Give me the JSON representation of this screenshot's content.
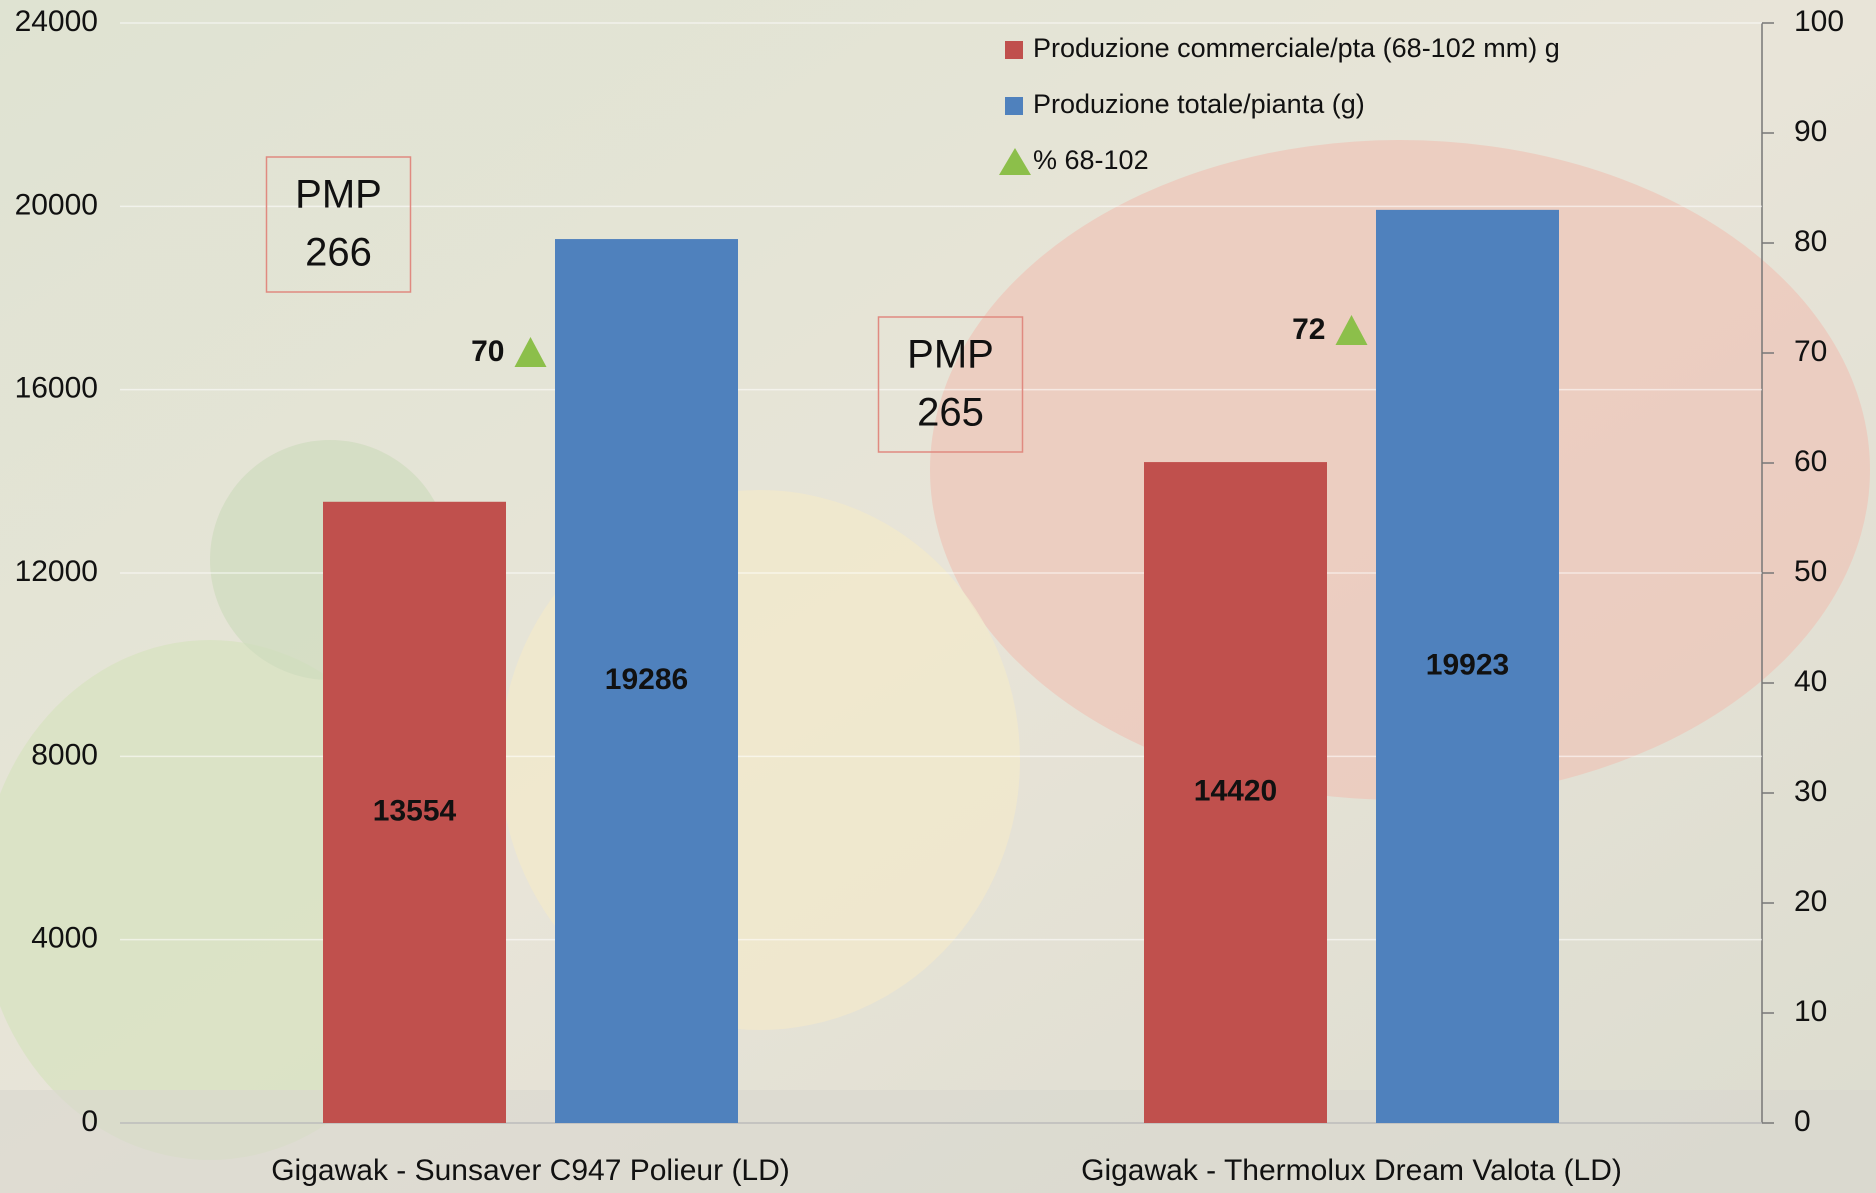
{
  "chart_data": {
    "type": "bar",
    "categories": [
      "Gigawak - Sunsaver C947 Polieur (LD)",
      "Gigawak - Thermolux Dream Valota (LD)"
    ],
    "series": [
      {
        "name": "Produzione commerciale/pta (68-102 mm) g",
        "color": "#c0504d",
        "values": [
          13554,
          14420
        ]
      },
      {
        "name": "Produzione totale/pianta (g)",
        "color": "#4f81bd",
        "values": [
          19286,
          19923
        ]
      },
      {
        "name": "% 68-102",
        "type": "scatter",
        "axis": "y2",
        "color": "#8cbf4a",
        "values": [
          70,
          72
        ]
      }
    ],
    "ylim": [
      0,
      24000
    ],
    "yticks": [
      0,
      4000,
      8000,
      12000,
      16000,
      20000,
      24000
    ],
    "y2lim": [
      0,
      100
    ],
    "y2ticks": [
      0,
      10,
      20,
      30,
      40,
      50,
      60,
      70,
      80,
      90,
      100
    ],
    "annotations": [
      {
        "text": "PMP",
        "value": 266
      },
      {
        "text": "PMP",
        "value": 265
      }
    ],
    "grid": true,
    "legend": "top-right"
  }
}
